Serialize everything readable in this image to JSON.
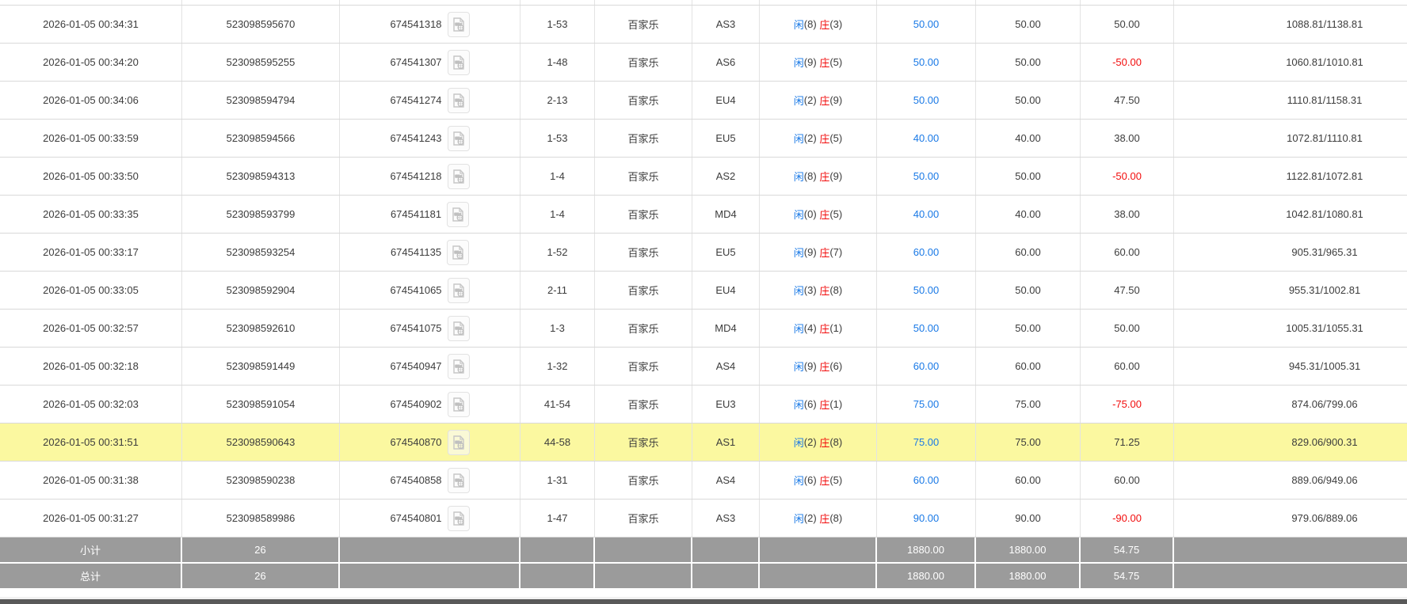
{
  "table": {
    "game_record_icon": "video-file-icon",
    "colors": {
      "bet_amount_blue": "#1979e6",
      "negative_red": "#f20d0d",
      "player_blue": "#1979e6",
      "banker_red": "#f20d0d",
      "highlight_yellow": "#FBF8A0",
      "summary_gray": "#9b9b9b"
    },
    "rows": [
      {
        "time": "2026-01-05 00:34:31",
        "bet_id": "523098595670",
        "round_id": "674541318",
        "shoe_round": "1-53",
        "game": "百家乐",
        "table_code": "AS3",
        "player": "闲",
        "player_score": "(8)",
        "banker": "庄",
        "banker_score": "(3)",
        "bet_amount": "50.00",
        "valid_amount": "50.00",
        "win_loss": "50.00",
        "balance": "1088.81/1138.81",
        "highlighted": false
      },
      {
        "time": "2026-01-05 00:34:20",
        "bet_id": "523098595255",
        "round_id": "674541307",
        "shoe_round": "1-48",
        "game": "百家乐",
        "table_code": "AS6",
        "player": "闲",
        "player_score": "(9)",
        "banker": "庄",
        "banker_score": "(5)",
        "bet_amount": "50.00",
        "valid_amount": "50.00",
        "win_loss": "-50.00",
        "balance": "1060.81/1010.81",
        "highlighted": false
      },
      {
        "time": "2026-01-05 00:34:06",
        "bet_id": "523098594794",
        "round_id": "674541274",
        "shoe_round": "2-13",
        "game": "百家乐",
        "table_code": "EU4",
        "player": "闲",
        "player_score": "(2)",
        "banker": "庄",
        "banker_score": "(9)",
        "bet_amount": "50.00",
        "valid_amount": "50.00",
        "win_loss": "47.50",
        "balance": "1110.81/1158.31",
        "highlighted": false
      },
      {
        "time": "2026-01-05 00:33:59",
        "bet_id": "523098594566",
        "round_id": "674541243",
        "shoe_round": "1-53",
        "game": "百家乐",
        "table_code": "EU5",
        "player": "闲",
        "player_score": "(2)",
        "banker": "庄",
        "banker_score": "(5)",
        "bet_amount": "40.00",
        "valid_amount": "40.00",
        "win_loss": "38.00",
        "balance": "1072.81/1110.81",
        "highlighted": false
      },
      {
        "time": "2026-01-05 00:33:50",
        "bet_id": "523098594313",
        "round_id": "674541218",
        "shoe_round": "1-4",
        "game": "百家乐",
        "table_code": "AS2",
        "player": "闲",
        "player_score": "(8)",
        "banker": "庄",
        "banker_score": "(9)",
        "bet_amount": "50.00",
        "valid_amount": "50.00",
        "win_loss": "-50.00",
        "balance": "1122.81/1072.81",
        "highlighted": false
      },
      {
        "time": "2026-01-05 00:33:35",
        "bet_id": "523098593799",
        "round_id": "674541181",
        "shoe_round": "1-4",
        "game": "百家乐",
        "table_code": "MD4",
        "player": "闲",
        "player_score": "(0)",
        "banker": "庄",
        "banker_score": "(5)",
        "bet_amount": "40.00",
        "valid_amount": "40.00",
        "win_loss": "38.00",
        "balance": "1042.81/1080.81",
        "highlighted": false
      },
      {
        "time": "2026-01-05 00:33:17",
        "bet_id": "523098593254",
        "round_id": "674541135",
        "shoe_round": "1-52",
        "game": "百家乐",
        "table_code": "EU5",
        "player": "闲",
        "player_score": "(9)",
        "banker": "庄",
        "banker_score": "(7)",
        "bet_amount": "60.00",
        "valid_amount": "60.00",
        "win_loss": "60.00",
        "balance": "905.31/965.31",
        "highlighted": false
      },
      {
        "time": "2026-01-05 00:33:05",
        "bet_id": "523098592904",
        "round_id": "674541065",
        "shoe_round": "2-11",
        "game": "百家乐",
        "table_code": "EU4",
        "player": "闲",
        "player_score": "(3)",
        "banker": "庄",
        "banker_score": "(8)",
        "bet_amount": "50.00",
        "valid_amount": "50.00",
        "win_loss": "47.50",
        "balance": "955.31/1002.81",
        "highlighted": false
      },
      {
        "time": "2026-01-05 00:32:57",
        "bet_id": "523098592610",
        "round_id": "674541075",
        "shoe_round": "1-3",
        "game": "百家乐",
        "table_code": "MD4",
        "player": "闲",
        "player_score": "(4)",
        "banker": "庄",
        "banker_score": "(1)",
        "bet_amount": "50.00",
        "valid_amount": "50.00",
        "win_loss": "50.00",
        "balance": "1005.31/1055.31",
        "highlighted": false
      },
      {
        "time": "2026-01-05 00:32:18",
        "bet_id": "523098591449",
        "round_id": "674540947",
        "shoe_round": "1-32",
        "game": "百家乐",
        "table_code": "AS4",
        "player": "闲",
        "player_score": "(9)",
        "banker": "庄",
        "banker_score": "(6)",
        "bet_amount": "60.00",
        "valid_amount": "60.00",
        "win_loss": "60.00",
        "balance": "945.31/1005.31",
        "highlighted": false
      },
      {
        "time": "2026-01-05 00:32:03",
        "bet_id": "523098591054",
        "round_id": "674540902",
        "shoe_round": "41-54",
        "game": "百家乐",
        "table_code": "EU3",
        "player": "闲",
        "player_score": "(6)",
        "banker": "庄",
        "banker_score": "(1)",
        "bet_amount": "75.00",
        "valid_amount": "75.00",
        "win_loss": "-75.00",
        "balance": "874.06/799.06",
        "highlighted": false
      },
      {
        "time": "2026-01-05 00:31:51",
        "bet_id": "523098590643",
        "round_id": "674540870",
        "shoe_round": "44-58",
        "game": "百家乐",
        "table_code": "AS1",
        "player": "闲",
        "player_score": "(2)",
        "banker": "庄",
        "banker_score": "(8)",
        "bet_amount": "75.00",
        "valid_amount": "75.00",
        "win_loss": "71.25",
        "balance": "829.06/900.31",
        "highlighted": true
      },
      {
        "time": "2026-01-05 00:31:38",
        "bet_id": "523098590238",
        "round_id": "674540858",
        "shoe_round": "1-31",
        "game": "百家乐",
        "table_code": "AS4",
        "player": "闲",
        "player_score": "(6)",
        "banker": "庄",
        "banker_score": "(5)",
        "bet_amount": "60.00",
        "valid_amount": "60.00",
        "win_loss": "60.00",
        "balance": "889.06/949.06",
        "highlighted": false
      },
      {
        "time": "2026-01-05 00:31:27",
        "bet_id": "523098589986",
        "round_id": "674540801",
        "shoe_round": "1-47",
        "game": "百家乐",
        "table_code": "AS3",
        "player": "闲",
        "player_score": "(2)",
        "banker": "庄",
        "banker_score": "(8)",
        "bet_amount": "90.00",
        "valid_amount": "90.00",
        "win_loss": "-90.00",
        "balance": "979.06/889.06",
        "highlighted": false
      }
    ],
    "summary": [
      {
        "label": "小计",
        "count": "26",
        "bet_total": "1880.00",
        "valid_total": "1880.00",
        "win_loss_total": "54.75"
      },
      {
        "label": "总计",
        "count": "26",
        "bet_total": "1880.00",
        "valid_total": "1880.00",
        "win_loss_total": "54.75"
      }
    ]
  }
}
